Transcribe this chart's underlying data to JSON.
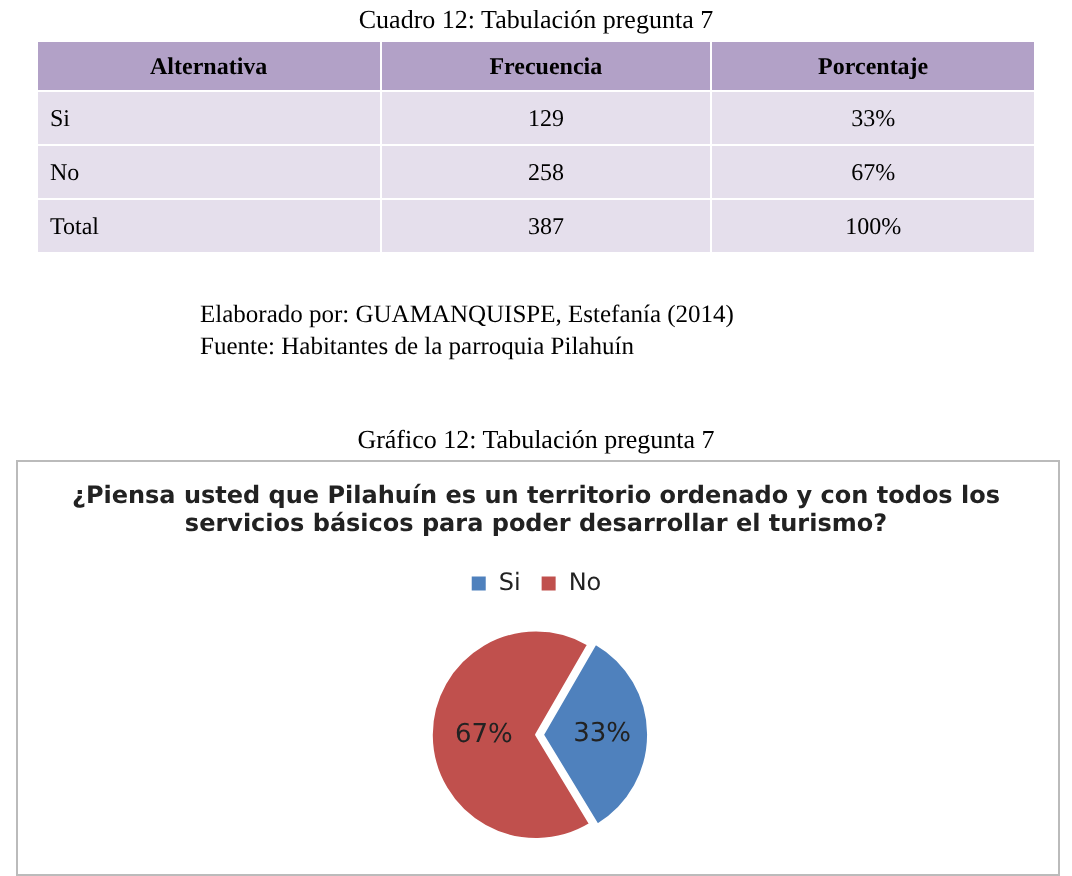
{
  "chart_data": [
    {
      "type": "other",
      "title": "Cuadro 12: Tabulación pregunta 7",
      "xlabel": "Alternativa",
      "categories": [
        "Si",
        "No",
        "Total"
      ],
      "series": [
        {
          "name": "Frecuencia",
          "values": [
            129,
            258,
            387
          ]
        },
        {
          "name": "Porcentaje",
          "values": [
            33,
            67,
            100
          ],
          "value_labels": [
            "33%",
            "67%",
            "100%"
          ]
        }
      ],
      "data_labels": true,
      "annotations": [
        "Elaborado por: GUAMANQUISPE, Estefanía  (2014)",
        "Fuente: Habitantes de la parroquia Pilahuín"
      ]
    },
    {
      "type": "pie",
      "title": "¿Piensa usted que Pilahuín es un territorio ordenado y con todos los servicios básicos para poder desarrollar el turismo?",
      "annotations": [
        "Gráfico 12: Tabulación pregunta 7"
      ],
      "categories": [
        "Si",
        "No"
      ],
      "values": [
        33,
        67
      ],
      "value_labels": [
        "33%",
        "67%"
      ],
      "colors": [
        "#4f81bd",
        "#c0504d"
      ],
      "legend": "top"
    }
  ]
}
